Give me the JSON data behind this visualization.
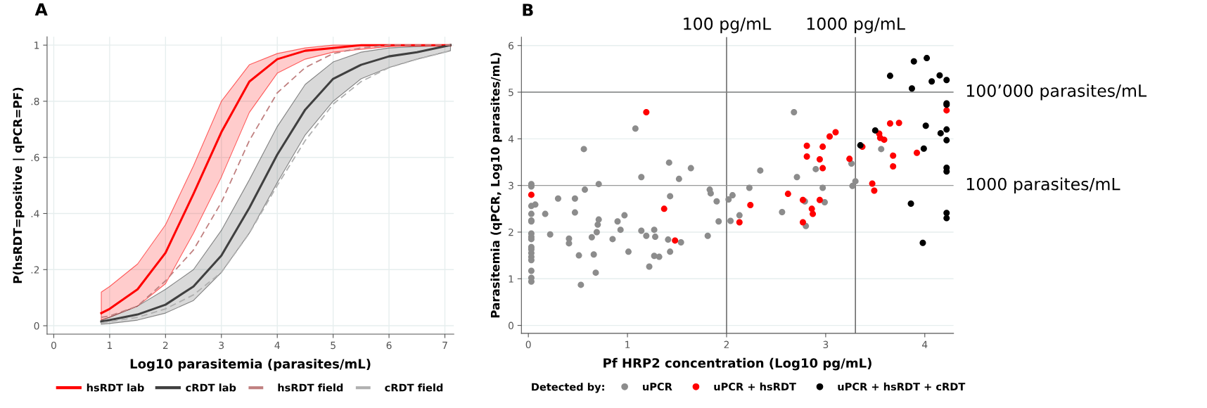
{
  "chart_data": [
    {
      "type": "line",
      "title": "A",
      "xlabel": "Log10 parasitemia (parasites/mL)",
      "ylabel": "P(hsRDT=positive | qPCR=PF)",
      "x": [
        0.85,
        1,
        1.5,
        2,
        2.5,
        3,
        3.5,
        4,
        4.5,
        5,
        5.5,
        6,
        6.5,
        7.1
      ],
      "series": [
        {
          "name": "hsRDT lab",
          "color": "#ff0000",
          "line_style": "solid",
          "values": [
            0.045,
            0.06,
            0.13,
            0.26,
            0.47,
            0.69,
            0.87,
            0.95,
            0.98,
            0.99,
            1.0,
            1.0,
            1.0,
            1.0
          ],
          "lower": [
            0.02,
            0.03,
            0.07,
            0.15,
            0.33,
            0.53,
            0.76,
            0.9,
            0.95,
            0.975,
            0.985,
            0.995,
            1.0,
            1.0
          ],
          "upper": [
            0.12,
            0.14,
            0.22,
            0.36,
            0.57,
            0.8,
            0.93,
            0.97,
            0.99,
            1.0,
            1.0,
            1.0,
            1.0,
            1.0
          ]
        },
        {
          "name": "cRDT lab",
          "color": "#404040",
          "line_style": "solid",
          "values": [
            0.015,
            0.02,
            0.04,
            0.075,
            0.14,
            0.25,
            0.42,
            0.61,
            0.77,
            0.88,
            0.93,
            0.96,
            0.975,
            1.0
          ],
          "lower": [
            0.005,
            0.008,
            0.02,
            0.045,
            0.09,
            0.19,
            0.33,
            0.51,
            0.68,
            0.8,
            0.88,
            0.92,
            0.95,
            0.98
          ],
          "upper": [
            0.02,
            0.03,
            0.07,
            0.13,
            0.2,
            0.34,
            0.52,
            0.71,
            0.86,
            0.94,
            0.975,
            0.99,
            0.995,
            1.0
          ]
        },
        {
          "name": "hsRDT field",
          "color": "#c08080",
          "line_style": "dashed",
          "values": [
            0.03,
            0.035,
            0.07,
            0.16,
            0.27,
            0.44,
            0.66,
            0.83,
            0.92,
            0.97,
            0.99,
            1.0,
            1.0,
            1.0
          ]
        },
        {
          "name": "cRDT field",
          "color": "#b0b0b0",
          "line_style": "dashed",
          "values": [
            0.01,
            0.015,
            0.03,
            0.06,
            0.11,
            0.19,
            0.33,
            0.5,
            0.66,
            0.79,
            0.87,
            0.92,
            0.95,
            0.98
          ]
        }
      ],
      "xlim": [
        -0.12,
        7.16
      ],
      "ylim": [
        -0.03,
        1.03
      ],
      "xticks": [
        0,
        1,
        2,
        3,
        4,
        5,
        6,
        7
      ],
      "yticks": [
        0,
        {
          "value": 0.2,
          "label": ".2"
        },
        {
          "value": 0.4,
          "label": ".4"
        },
        {
          "value": 0.6,
          "label": ".6"
        },
        {
          "value": 0.8,
          "label": ".8"
        },
        1
      ],
      "grid": true,
      "legend": "bottom",
      "marker": "none"
    },
    {
      "type": "scatter",
      "title": "B",
      "xlabel": "Pf HRP2 concentration (Log10 pg/mL)",
      "ylabel": "Parasitemia (qPCR, Log10 parasites/mL)",
      "legend_title": "Detected by:",
      "series": [
        {
          "name": "uPCR",
          "color": "#8c8c8c",
          "x": [
            0.03,
            0.03,
            0.03,
            0.03,
            0.03,
            0.03,
            0.03,
            0.03,
            0.03,
            0.03,
            0.03,
            0.03,
            0.03,
            0.03,
            0.03,
            0.03,
            0.03,
            0.07,
            0.17,
            0.22,
            0.3,
            0.41,
            0.41,
            0.47,
            0.47,
            0.51,
            0.53,
            0.56,
            0.57,
            0.66,
            0.68,
            0.69,
            0.7,
            0.71,
            0.71,
            0.64,
            0.85,
            0.9,
            0.93,
            0.97,
            1.01,
            1.08,
            1.14,
            1.14,
            1.19,
            1.22,
            1.27,
            1.27,
            1.28,
            1.32,
            1.41,
            1.42,
            1.43,
            1.43,
            1.52,
            1.54,
            1.64,
            1.81,
            1.83,
            1.84,
            1.9,
            1.92,
            2.02,
            2.04,
            2.06,
            2.13,
            2.23,
            2.34,
            2.56,
            2.68,
            2.71,
            2.79,
            2.8,
            2.9,
            2.97,
            2.99,
            3.26,
            3.27,
            3.3,
            3.56
          ],
          "values": [
            3.03,
            2.98,
            2.56,
            2.39,
            2.25,
            2.23,
            1.97,
            1.9,
            1.85,
            1.68,
            1.63,
            1.55,
            1.47,
            1.4,
            1.17,
            1.02,
            0.94,
            2.59,
            2.39,
            1.95,
            2.72,
            1.86,
            1.76,
            2.72,
            2.42,
            1.5,
            0.87,
            3.78,
            2.91,
            1.52,
            1.13,
            2.0,
            2.16,
            2.27,
            3.03,
            1.89,
            1.85,
            2.23,
            2.05,
            2.36,
            1.58,
            4.22,
            3.18,
            2.03,
            1.92,
            1.26,
            1.49,
            2.05,
            1.9,
            1.47,
            1.84,
            3.49,
            1.58,
            2.77,
            3.14,
            1.78,
            3.37,
            1.92,
            2.91,
            2.83,
            2.66,
            2.23,
            2.7,
            2.24,
            2.79,
            2.36,
            2.95,
            3.32,
            2.43,
            4.57,
            3.18,
            2.66,
            2.13,
            3.35,
            2.95,
            2.64,
            3.47,
            2.99,
            3.09,
            3.78
          ]
        },
        {
          "name": "uPCR + hsRDT",
          "color": "#ff0000",
          "x": [
            0.03,
            1.19,
            1.37,
            1.48,
            2.13,
            2.24,
            2.62,
            2.77,
            2.77,
            2.81,
            2.81,
            2.86,
            2.87,
            2.94,
            2.94,
            2.97,
            2.97,
            3.04,
            3.1,
            3.24,
            3.37,
            3.47,
            3.49,
            3.54,
            3.55,
            3.59,
            3.65,
            3.68,
            3.68,
            3.74,
            3.92,
            4.22
          ],
          "values": [
            2.8,
            4.57,
            2.5,
            1.82,
            2.21,
            2.58,
            2.82,
            2.69,
            2.21,
            3.85,
            3.62,
            2.5,
            2.39,
            3.56,
            2.69,
            3.83,
            3.37,
            4.05,
            4.14,
            3.57,
            3.83,
            3.04,
            2.89,
            4.11,
            4.02,
            3.98,
            4.33,
            3.64,
            3.41,
            4.34,
            3.7,
            4.61
          ]
        },
        {
          "name": "uPCR + hsRDT + cRDT",
          "color": "#000000",
          "x": [
            3.65,
            3.87,
            3.89,
            4.02,
            4.07,
            4.15,
            4.22,
            4.22,
            4.22,
            3.5,
            3.35,
            4.01,
            4.16,
            4.22,
            4.22,
            3.99,
            4.22,
            4.22,
            3.86,
            4.22,
            4.22,
            3.98
          ],
          "values": [
            5.35,
            5.08,
            5.66,
            5.73,
            5.23,
            5.36,
            5.26,
            4.76,
            4.73,
            4.18,
            3.86,
            4.28,
            4.12,
            4.2,
            3.97,
            3.79,
            3.38,
            3.3,
            2.61,
            2.41,
            2.3,
            1.77
          ]
        }
      ],
      "xlim": [
        -0.07,
        4.29
      ],
      "ylim": [
        -0.17,
        6.18
      ],
      "xticks": [
        0,
        1,
        2,
        3,
        4
      ],
      "yticks": [
        0,
        1,
        2,
        3,
        4,
        5,
        6
      ],
      "grid": "y",
      "legend": "bottom",
      "marker": "circle",
      "ref_lines": [
        {
          "axis": "x",
          "value": 2,
          "label": "100 pg/mL",
          "color": "#555555"
        },
        {
          "axis": "x",
          "value": 3.3,
          "label": "1000 pg/mL",
          "color": "#555555"
        },
        {
          "axis": "y",
          "value": 5,
          "label": "100’000 parasites/mL",
          "color": "#7f7f7f"
        },
        {
          "axis": "y",
          "value": 3,
          "label": "1000 parasites/mL",
          "color": "#9a9a9a"
        }
      ]
    }
  ]
}
